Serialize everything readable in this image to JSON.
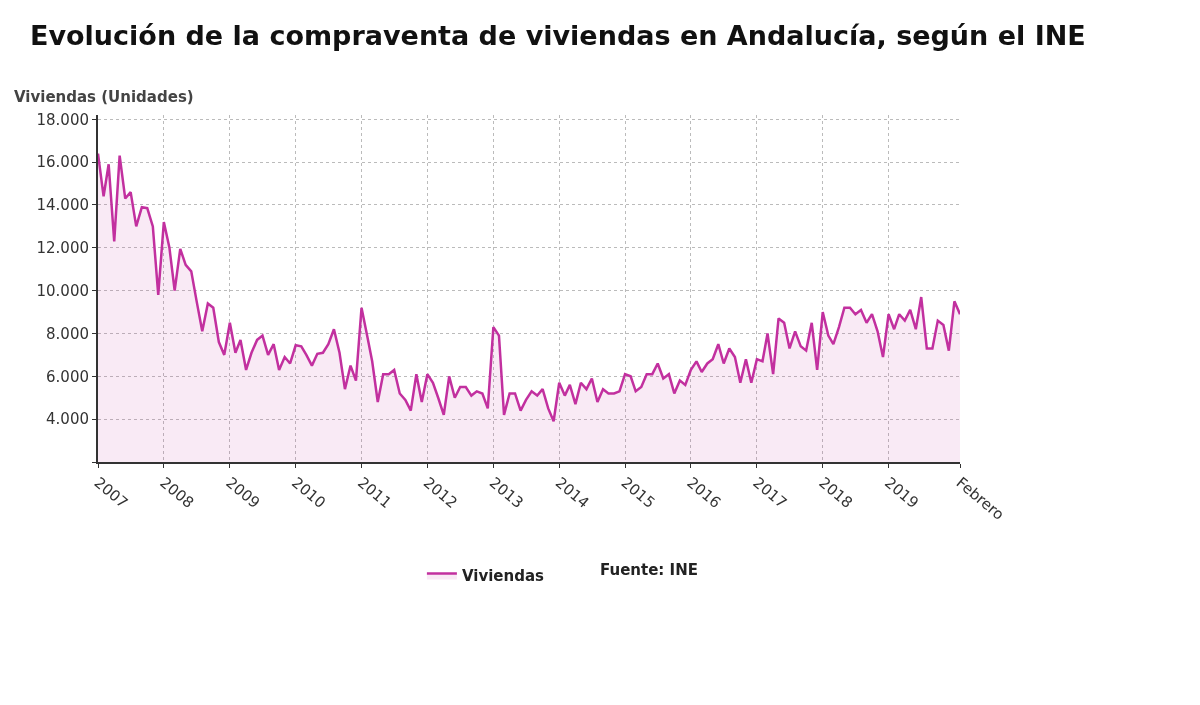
{
  "chart_data": {
    "type": "area",
    "title": "Evolución de la compraventa de viviendas en Andalucía, según el INE",
    "ylabel": "Viviendas (Unidades)",
    "annotations": [
      "Fuente: INE"
    ],
    "x": [
      "2007-01",
      "2007-02",
      "2007-03",
      "2007-04",
      "2007-05",
      "2007-06",
      "2007-07",
      "2007-08",
      "2007-09",
      "2007-10",
      "2007-11",
      "2007-12",
      "2008-01",
      "2008-02",
      "2008-03",
      "2008-04",
      "2008-05",
      "2008-06",
      "2008-07",
      "2008-08",
      "2008-09",
      "2008-10",
      "2008-11",
      "2008-12",
      "2009-01",
      "2009-02",
      "2009-03",
      "2009-04",
      "2009-05",
      "2009-06",
      "2009-07",
      "2009-08",
      "2009-09",
      "2009-10",
      "2009-11",
      "2009-12",
      "2010-01",
      "2010-02",
      "2010-03",
      "2010-04",
      "2010-05",
      "2010-06",
      "2010-07",
      "2010-08",
      "2010-09",
      "2010-10",
      "2010-11",
      "2010-12",
      "2011-01",
      "2011-02",
      "2011-03",
      "2011-04",
      "2011-05",
      "2011-06",
      "2011-07",
      "2011-08",
      "2011-09",
      "2011-10",
      "2011-11",
      "2011-12",
      "2012-01",
      "2012-02",
      "2012-03",
      "2012-04",
      "2012-05",
      "2012-06",
      "2012-07",
      "2012-08",
      "2012-09",
      "2012-10",
      "2012-11",
      "2012-12",
      "2013-01",
      "2013-02",
      "2013-03",
      "2013-04",
      "2013-05",
      "2013-06",
      "2013-07",
      "2013-08",
      "2013-09",
      "2013-10",
      "2013-11",
      "2013-12",
      "2014-01",
      "2014-02",
      "2014-03",
      "2014-04",
      "2014-05",
      "2014-06",
      "2014-07",
      "2014-08",
      "2014-09",
      "2014-10",
      "2014-11",
      "2014-12",
      "2015-01",
      "2015-02",
      "2015-03",
      "2015-04",
      "2015-05",
      "2015-06",
      "2015-07",
      "2015-08",
      "2015-09",
      "2015-10",
      "2015-11",
      "2015-12",
      "2016-01",
      "2016-02",
      "2016-03",
      "2016-04",
      "2016-05",
      "2016-06",
      "2016-07",
      "2016-08",
      "2016-09",
      "2016-10",
      "2016-11",
      "2016-12",
      "2017-01",
      "2017-02",
      "2017-03",
      "2017-04",
      "2017-05",
      "2017-06",
      "2017-07",
      "2017-08",
      "2017-09",
      "2017-10",
      "2017-11",
      "2017-12",
      "2018-01",
      "2018-02",
      "2018-03",
      "2018-04",
      "2018-05",
      "2018-06",
      "2018-07",
      "2018-08",
      "2018-09",
      "2018-10",
      "2018-11",
      "2018-12",
      "2019-01",
      "2019-02",
      "2019-03",
      "2019-04",
      "2019-05",
      "2019-06",
      "2019-07",
      "2019-08",
      "2019-09",
      "2019-10",
      "2019-11",
      "2019-12",
      "2020-01",
      "2020-02"
    ],
    "series": [
      {
        "name": "Viviendas",
        "color": "#c2309f",
        "values": [
          16400,
          14400,
          15900,
          12300,
          16300,
          14300,
          14600,
          13000,
          13900,
          13850,
          13000,
          9800,
          13200,
          12000,
          10000,
          11950,
          11200,
          10900,
          9500,
          8100,
          9400,
          9200,
          7600,
          7000,
          8500,
          7100,
          7700,
          6300,
          7100,
          7700,
          7900,
          7000,
          7500,
          6300,
          6900,
          6600,
          7450,
          7400,
          7000,
          6500,
          7050,
          7100,
          7500,
          8200,
          7100,
          5400,
          6500,
          5800,
          9200,
          7900,
          6700,
          4800,
          6100,
          6100,
          6300,
          5200,
          4900,
          4400,
          6100,
          4800,
          6100,
          5700,
          5000,
          4200,
          6000,
          5000,
          5500,
          5500,
          5100,
          5300,
          5200,
          4500,
          8300,
          7900,
          4200,
          5200,
          5200,
          4400,
          4900,
          5300,
          5100,
          5400,
          4500,
          3900,
          5700,
          5100,
          5600,
          4700,
          5700,
          5400,
          5900,
          4800,
          5400,
          5200,
          5200,
          5300,
          6100,
          6000,
          5300,
          5500,
          6100,
          6100,
          6600,
          5900,
          6100,
          5200,
          5800,
          5600,
          6300,
          6700,
          6200,
          6600,
          6800,
          7500,
          6600,
          7300,
          6900,
          5700,
          6800,
          5700,
          6800,
          6700,
          8000,
          6100,
          8700,
          8500,
          7300,
          8100,
          7400,
          7200,
          8500,
          6300,
          9000,
          7900,
          7500,
          8300,
          9200,
          9200,
          8900,
          9100,
          8500,
          8900,
          8100,
          6900,
          8900,
          8200,
          8900,
          8600,
          9100,
          8200,
          9700,
          7300,
          7300,
          8600,
          8400,
          7200,
          9500,
          8900
        ]
      }
    ],
    "ylim": [
      2000,
      18200
    ],
    "yticks": [
      {
        "value": 2000,
        "label": null
      },
      {
        "value": 4000,
        "label": "4.000"
      },
      {
        "value": 6000,
        "label": "6.000"
      },
      {
        "value": 8000,
        "label": "8.000"
      },
      {
        "value": 10000,
        "label": "10.000"
      },
      {
        "value": 12000,
        "label": "12.000"
      },
      {
        "value": 14000,
        "label": "14.000"
      },
      {
        "value": 16000,
        "label": "16.000"
      },
      {
        "value": 18000,
        "label": "18.000"
      }
    ],
    "xlim": [
      "2007-01-01",
      "2020-02-01"
    ],
    "xticks": [
      {
        "value": "2007-01-01",
        "label": "2007"
      },
      {
        "value": "2008-01-01",
        "label": "2008"
      },
      {
        "value": "2009-01-01",
        "label": "2009"
      },
      {
        "value": "2010-01-01",
        "label": "2010"
      },
      {
        "value": "2011-01-01",
        "label": "2011"
      },
      {
        "value": "2012-01-01",
        "label": "2012"
      },
      {
        "value": "2013-01-01",
        "label": "2013"
      },
      {
        "value": "2014-01-01",
        "label": "2014"
      },
      {
        "value": "2015-01-01",
        "label": "2015"
      },
      {
        "value": "2016-01-01",
        "label": "2016"
      },
      {
        "value": "2017-01-01",
        "label": "2017"
      },
      {
        "value": "2018-01-01",
        "label": "2018"
      },
      {
        "value": "2019-01-01",
        "label": "2019"
      },
      {
        "value": "2020-02-01",
        "label": "Febrero"
      }
    ],
    "grid": true,
    "legend": "bottom",
    "marker": "none",
    "line_style": "solid"
  }
}
